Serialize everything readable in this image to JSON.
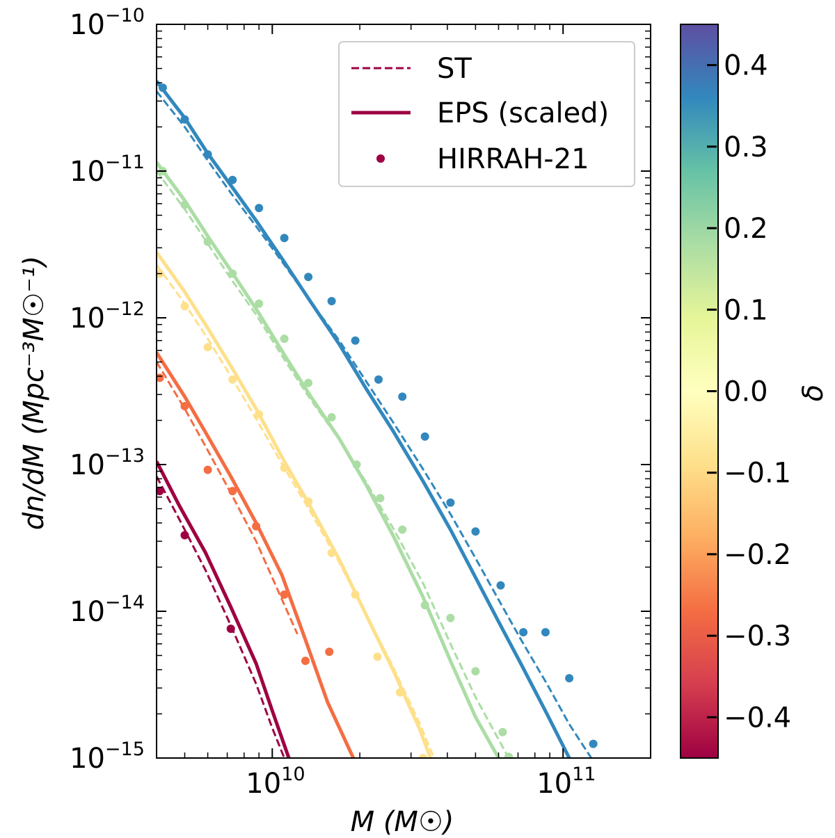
{
  "chart_data": {
    "type": "line",
    "xlabel": "M (M☉)",
    "ylabel": "dn/dM (Mpc⁻³M☉⁻¹)",
    "x_scale": "log",
    "y_scale": "log",
    "xlim": [
      4000000000.0,
      200000000000.0
    ],
    "ylim": [
      1e-15,
      1e-10
    ],
    "x_ticks": [
      {
        "value": 10000000000.0,
        "base": "10",
        "exp": "10"
      },
      {
        "value": 100000000000.0,
        "base": "10",
        "exp": "11"
      }
    ],
    "y_ticks": [
      {
        "value": 1e-10,
        "base": "10",
        "exp": "−10"
      },
      {
        "value": 1e-11,
        "base": "10",
        "exp": "−11"
      },
      {
        "value": 1e-12,
        "base": "10",
        "exp": "−12"
      },
      {
        "value": 1e-13,
        "base": "10",
        "exp": "−13"
      },
      {
        "value": 1e-14,
        "base": "10",
        "exp": "−14"
      },
      {
        "value": 1e-15,
        "base": "10",
        "exp": "−15"
      }
    ],
    "legend": {
      "position": "top-right",
      "entries": [
        {
          "label": "ST",
          "style": "dashed"
        },
        {
          "label": "EPS (scaled)",
          "style": "solid"
        },
        {
          "label": "HIRRAH-21",
          "style": "marker"
        }
      ],
      "color": "#9e0142"
    },
    "colorbar": {
      "label": "δ",
      "range": [
        -0.45,
        0.45
      ],
      "ticks": [
        "−0.4",
        "−0.3",
        "−0.2",
        "−0.1",
        "0.0",
        "0.1",
        "0.2",
        "0.3",
        "0.4"
      ],
      "tick_values": [
        -0.4,
        -0.3,
        -0.2,
        -0.1,
        0.0,
        0.1,
        0.2,
        0.3,
        0.4
      ],
      "colormap": "Spectral",
      "stops": [
        "#9e0142",
        "#d53e4f",
        "#f46d43",
        "#fdae61",
        "#fee08b",
        "#ffffbf",
        "#e6f598",
        "#abdda4",
        "#66c2a5",
        "#3288bd",
        "#5e4fa2"
      ]
    },
    "series": [
      {
        "delta": -0.4,
        "color": "#9e0142",
        "eps": {
          "x": [
            4000000000.0,
            4800000000.0,
            5900000000.0,
            7200000000.0,
            8800000000.0,
            10000000000.0,
            11400000000.0
          ],
          "y": [
            1.05e-13,
            5.2e-14,
            2.5e-14,
            1.07e-14,
            4.4e-15,
            2.1e-15,
            1e-15
          ]
        },
        "st": {
          "x": [
            4000000000.0,
            4800000000.0,
            5900000000.0,
            7200000000.0,
            8800000000.0,
            10000000000.0,
            11000000000.0
          ],
          "y": [
            8.3e-14,
            4.2e-14,
            1.9e-14,
            8e-15,
            3.2e-15,
            1.6e-15,
            1e-15
          ]
        },
        "points": {
          "x": [
            4100000000.0,
            5000000000.0,
            7200000000.0
          ],
          "y": [
            6.6e-14,
            3.3e-14,
            7.6e-15
          ]
        }
      },
      {
        "delta": -0.2,
        "color": "#f46d43",
        "eps": {
          "x": [
            4000000000.0,
            5000000000.0,
            6000000000.0,
            7200000000.0,
            8800000000.0,
            10800000000.0,
            13000000000.0,
            15500000000.0,
            19000000000.0
          ],
          "y": [
            5.8e-13,
            2.9e-13,
            1.56e-13,
            8.3e-14,
            4e-14,
            1.76e-14,
            6.4e-15,
            2.4e-15,
            1e-15
          ]
        },
        "st": {
          "x": [
            4000000000.0,
            5000000000.0,
            6000000000.0,
            7200000000.0,
            8800000000.0,
            10800000000.0,
            12200000000.0
          ],
          "y": [
            5e-13,
            2.4e-13,
            1.25e-13,
            6.4e-14,
            3e-14,
            1.2e-14,
            7e-15
          ]
        },
        "points": {
          "x": [
            4100000000.0,
            5000000000.0,
            6000000000.0,
            7300000000.0,
            8800000000.0,
            11000000000.0,
            13000000000.0,
            15700000000.0
          ],
          "y": [
            3.9e-13,
            2.5e-13,
            9.2e-14,
            6.6e-14,
            3.8e-14,
            1.3e-14,
            4.6e-15,
            5.3e-15
          ]
        }
      },
      {
        "delta": 0.0,
        "color": "#fee08b",
        "eps": {
          "x": [
            4000000000.0,
            5000000000.0,
            6000000000.0,
            7200000000.0,
            8800000000.0,
            11000000000.0,
            13500000000.0,
            17000000000.0,
            21000000000.0,
            26000000000.0,
            32000000000.0,
            35000000000.0
          ],
          "y": [
            2.8e-12,
            1.5e-12,
            8.5e-13,
            4.7e-13,
            2.4e-13,
            1.05e-13,
            5.2e-14,
            2.25e-14,
            9.5e-15,
            4e-15,
            1.6e-15,
            1e-15
          ]
        },
        "st": {
          "x": [
            4000000000.0,
            5000000000.0,
            6000000000.0,
            7200000000.0,
            8800000000.0,
            11000000000.0,
            13500000000.0,
            17000000000.0,
            21000000000.0,
            26000000000.0,
            32000000000.0,
            36000000000.0
          ],
          "y": [
            2.3e-12,
            1.25e-12,
            7.2e-13,
            4e-13,
            2.05e-13,
            9.5e-14,
            4.8e-14,
            2.15e-14,
            9.5e-15,
            4.2e-15,
            1.75e-15,
            1e-15
          ]
        },
        "points": {
          "x": [
            4100000000.0,
            5000000000.0,
            6000000000.0,
            7300000000.0,
            9000000000.0,
            11000000000.0,
            13300000000.0,
            16000000000.0,
            19300000000.0,
            23000000000.0,
            27500000000.0,
            33000000000.0,
            40000000000.0
          ],
          "y": [
            2e-12,
            1.2e-12,
            6.3e-13,
            3.8e-13,
            2.2e-13,
            9.5e-14,
            5.6e-14,
            2.5e-14,
            1.3e-14,
            4.9e-15,
            2.8e-15,
            1e-15,
            9.5e-16
          ]
        }
      },
      {
        "delta": 0.2,
        "color": "#abdda4",
        "eps": {
          "x": [
            4000000000.0,
            5000000000.0,
            6000000000.0,
            7200000000.0,
            8800000000.0,
            11000000000.0,
            13500000000.0,
            17000000000.0,
            21000000000.0,
            26000000000.0,
            33000000000.0,
            41000000000.0,
            50000000000.0,
            60000000000.0
          ],
          "y": [
            1.15e-11,
            6.3e-12,
            3.6e-12,
            2.1e-12,
            1.15e-12,
            5.6e-13,
            2.95e-13,
            1.5e-13,
            7.3e-14,
            3.3e-14,
            1.25e-14,
            4.6e-15,
            1.9e-15,
            1e-15
          ]
        },
        "st": {
          "x": [
            4000000000.0,
            5000000000.0,
            6000000000.0,
            7200000000.0,
            8800000000.0,
            11000000000.0,
            13500000000.0,
            17000000000.0,
            21000000000.0,
            26000000000.0,
            33000000000.0,
            41000000000.0,
            50000000000.0,
            65000000000.0
          ],
          "y": [
            1e-11,
            5.5e-12,
            3.2e-12,
            1.85e-12,
            1.05e-12,
            5.2e-13,
            2.8e-13,
            1.48e-13,
            7.6e-14,
            3.7e-14,
            1.55e-14,
            6e-15,
            2.6e-15,
            1e-15
          ]
        },
        "points": {
          "x": [
            4200000000.0,
            5000000000.0,
            6000000000.0,
            7300000000.0,
            9000000000.0,
            11000000000.0,
            13300000000.0,
            16000000000.0,
            19500000000.0,
            23500000000.0,
            28000000000.0,
            33500000000.0,
            41000000000.0,
            50000000000.0,
            62000000000.0,
            65000000000.0
          ],
          "y": [
            1e-11,
            5.9e-12,
            3.3e-12,
            2e-12,
            1.25e-12,
            7.2e-13,
            3.6e-13,
            2.1e-13,
            1e-13,
            5.9e-14,
            3.6e-14,
            1.1e-14,
            9e-15,
            3.9e-15,
            1.5e-15,
            1.02e-15
          ]
        }
      },
      {
        "delta": 0.4,
        "color": "#3288bd",
        "eps": {
          "x": [
            4000000000.0,
            5000000000.0,
            6000000000.0,
            7200000000.0,
            8800000000.0,
            11000000000.0,
            13500000000.0,
            17000000000.0,
            21000000000.0,
            26000000000.0,
            33000000000.0,
            41000000000.0,
            50000000000.0,
            60000000000.0,
            72000000000.0,
            88000000000.0,
            105000000000.0
          ],
          "y": [
            4.1e-11,
            2.3e-11,
            1.32e-11,
            8e-12,
            4.6e-12,
            2.4e-12,
            1.3e-12,
            6.6e-13,
            3.3e-13,
            1.7e-13,
            7.7e-14,
            3.6e-14,
            1.7e-14,
            8.5e-15,
            4.3e-15,
            2e-15,
            1e-15
          ]
        },
        "st": {
          "x": [
            4000000000.0,
            5000000000.0,
            6000000000.0,
            7200000000.0,
            8800000000.0,
            11000000000.0,
            13500000000.0,
            17000000000.0,
            21000000000.0,
            26000000000.0,
            33000000000.0,
            41000000000.0,
            50000000000.0,
            60000000000.0,
            72000000000.0,
            88000000000.0,
            105000000000.0,
            125000000000.0
          ],
          "y": [
            3.5e-11,
            2e-11,
            1.18e-11,
            7.1e-12,
            4.2e-12,
            2.3e-12,
            1.3e-12,
            7e-13,
            3.7e-13,
            1.95e-13,
            9.3e-14,
            4.6e-14,
            2.3e-14,
            1.2e-14,
            6.3e-15,
            3.2e-15,
            1.7e-15,
            1e-15
          ]
        },
        "points": {
          "x": [
            4200000000.0,
            5000000000.0,
            6000000000.0,
            7300000000.0,
            9000000000.0,
            11000000000.0,
            13300000000.0,
            16000000000.0,
            19300000000.0,
            23200000000.0,
            28000000000.0,
            33500000000.0,
            41000000000.0,
            50000000000.0,
            61000000000.0,
            73000000000.0,
            87000000000.0,
            105000000000.0,
            127000000000.0
          ],
          "y": [
            3.7e-11,
            2.25e-11,
            1.3e-11,
            8.7e-12,
            5.6e-12,
            3.5e-12,
            1.9e-12,
            1.3e-12,
            7e-13,
            3.8e-13,
            2.9e-13,
            1.55e-13,
            5.5e-14,
            3.5e-14,
            1.5e-14,
            7.2e-15,
            7.2e-15,
            3.5e-15,
            1.25e-15
          ]
        }
      }
    ]
  }
}
